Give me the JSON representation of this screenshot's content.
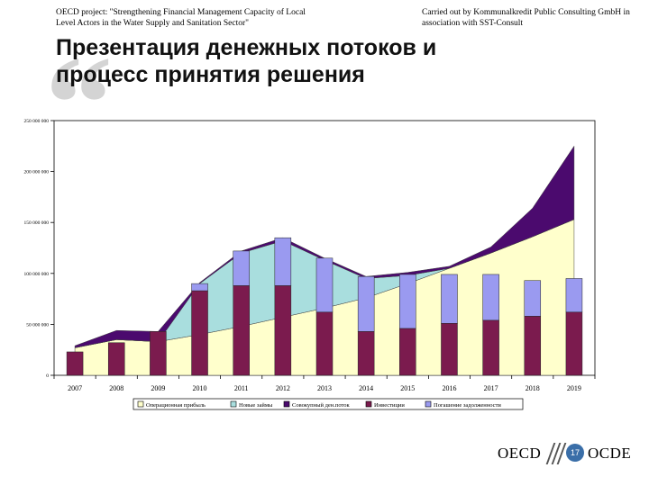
{
  "header": {
    "left": "OECD project: \"Strengthening Financial Management Capacity of Local Level Actors in the Water Supply and Sanitation Sector\"",
    "right": "Carried out by Kommunalkredit Public Consulting GmbH in association with SST-Consult"
  },
  "title": {
    "line1": "Презентация денежных потоков и",
    "line2": "процесс принятия решения"
  },
  "footer": {
    "logo_left": "OECD",
    "logo_right": "OCDE",
    "page_number": "17"
  },
  "colors": {
    "area_pale": "#ffffcc",
    "area_cyan": "#a9dede",
    "area_purple": "#4b0a6e",
    "bar_maroon": "#7b1b4e",
    "bar_lavender": "#9a9af0"
  },
  "chart_data": {
    "type": "bar",
    "categories": [
      "2007",
      "2008",
      "2009",
      "2010",
      "2011",
      "2012",
      "2013",
      "2014",
      "2015",
      "2016",
      "2017",
      "2018",
      "2019"
    ],
    "ylim": [
      0,
      250000000
    ],
    "y_ticks": [
      0,
      50000000,
      100000000,
      150000000,
      200000000,
      250000000
    ],
    "y_tick_labels": [
      "0",
      "50 000 000",
      "100 000 000",
      "150 000 000",
      "200 000 000",
      "250 000 000"
    ],
    "series": [
      {
        "name": "Операционная прибыль",
        "kind": "area",
        "color": "#ffffcc",
        "values": [
          27000000,
          35000000,
          33000000,
          40000000,
          48000000,
          57000000,
          66000000,
          76000000,
          90000000,
          105000000,
          120000000,
          136000000,
          153000000
        ]
      },
      {
        "name": "Новые займы",
        "kind": "area",
        "color": "#a9dede",
        "values": [
          0,
          0,
          0,
          50000000,
          72000000,
          75000000,
          47000000,
          19000000,
          8000000,
          0,
          0,
          0,
          0
        ]
      },
      {
        "name": "Совокупный ден.поток",
        "kind": "area",
        "color": "#4b0a6e",
        "values": [
          2000000,
          9000000,
          10000000,
          1000000,
          2000000,
          3000000,
          2000000,
          2000000,
          3000000,
          2000000,
          6000000,
          28000000,
          72000000
        ]
      },
      {
        "name": "Инвестиции",
        "kind": "bar",
        "color": "#7b1b4e",
        "values": [
          23000000,
          32000000,
          43000000,
          83000000,
          88000000,
          88000000,
          62000000,
          43000000,
          46000000,
          51000000,
          54000000,
          58000000,
          62000000
        ]
      },
      {
        "name": "Погашение задолженности",
        "kind": "bar",
        "color": "#9a9af0",
        "values": [
          0,
          0,
          0,
          7000000,
          34000000,
          47000000,
          53000000,
          54000000,
          53000000,
          48000000,
          45000000,
          35000000,
          33000000
        ]
      }
    ],
    "legend": [
      "Операционная прибыль",
      "Новые займы",
      "Совокупный ден.поток",
      "Инвестиции",
      "Погашение задолженности"
    ],
    "legend_position": "bottom",
    "title": "",
    "xlabel": "",
    "ylabel": ""
  }
}
